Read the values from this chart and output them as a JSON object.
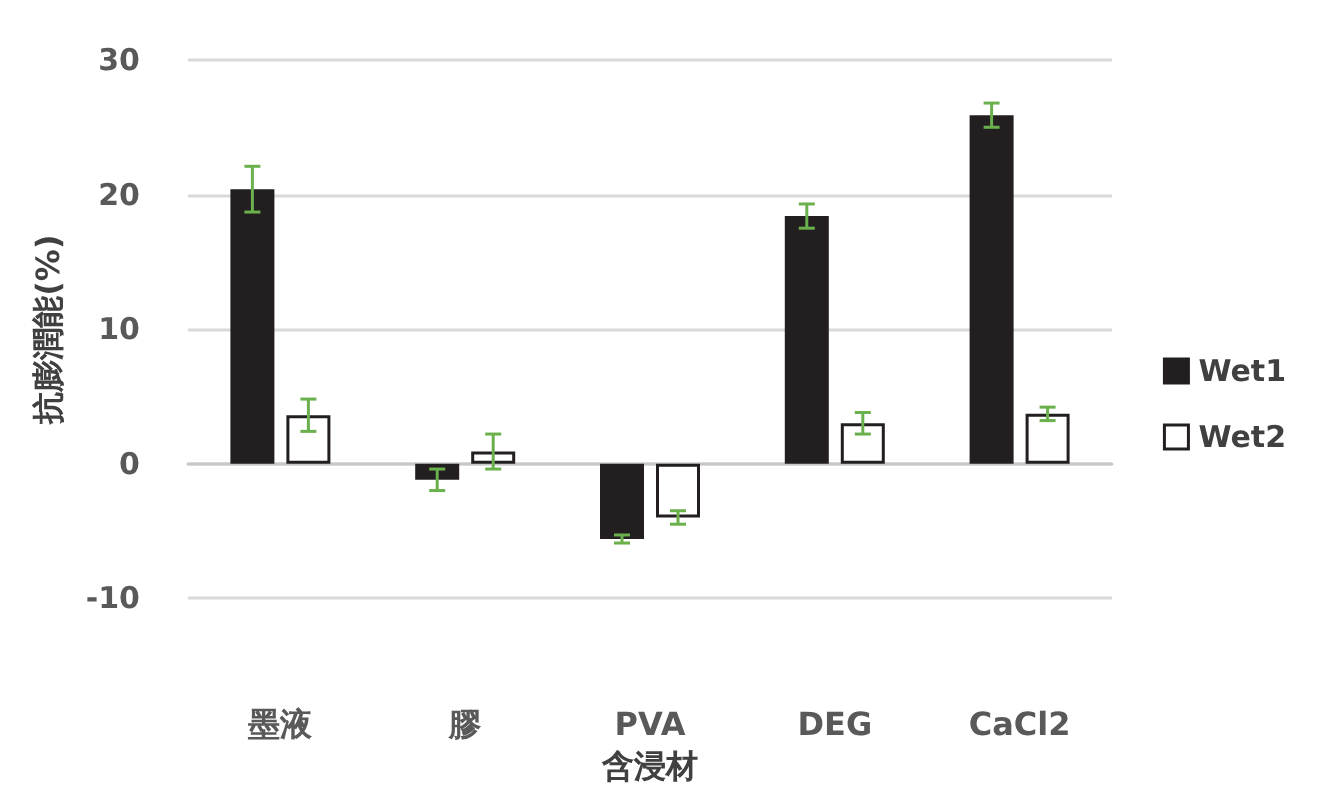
{
  "chart_data": {
    "type": "bar",
    "xlabel": "含浸材",
    "ylabel": "抗膨潤能(%)",
    "categories": [
      "墨液",
      "膠",
      "PVA",
      "DEG",
      "CaCl2"
    ],
    "series": [
      {
        "name": "Wet1",
        "color": "#231f20",
        "values": [
          20.4,
          -1.2,
          -5.6,
          18.4,
          25.9
        ],
        "errors": [
          1.7,
          0.8,
          0.3,
          0.9,
          0.9
        ]
      },
      {
        "name": "Wet2",
        "color": "#ffffff",
        "values": [
          3.6,
          0.9,
          -4.0,
          3.0,
          3.7
        ],
        "errors": [
          1.2,
          1.3,
          0.5,
          0.8,
          0.5
        ]
      }
    ],
    "ylim": [
      -10,
      30
    ],
    "yticks": [
      -10,
      0,
      10,
      20,
      30
    ],
    "grid": "y",
    "legend": "right"
  }
}
